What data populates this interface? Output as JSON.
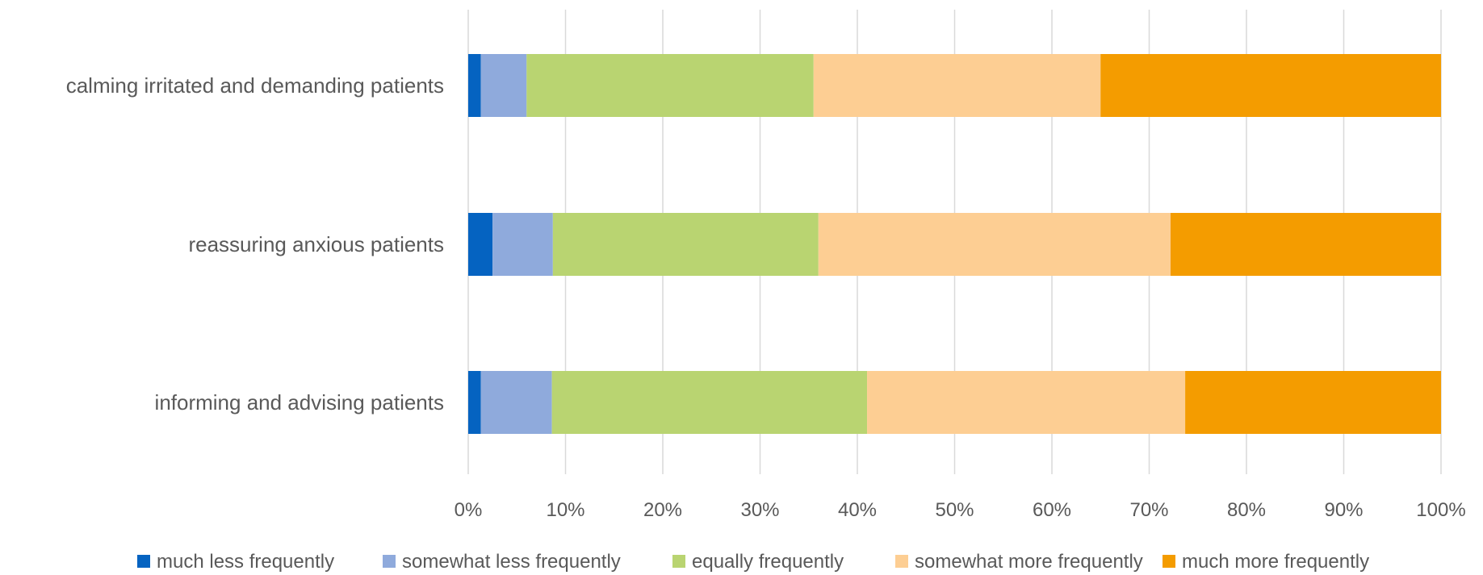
{
  "chart_data": {
    "type": "bar",
    "orientation": "horizontal",
    "stacked": "percent",
    "categories": [
      "calming irritated and demanding patients",
      "reassuring anxious patients",
      "informing and advising patients"
    ],
    "series": [
      {
        "name": "much less frequently",
        "color": "#0563C1",
        "values": [
          1.3,
          2.5,
          1.3
        ]
      },
      {
        "name": "somewhat less frequently",
        "color": "#8FAADC",
        "values": [
          4.7,
          6.2,
          7.3
        ]
      },
      {
        "name": "equally frequently",
        "color": "#B9D471",
        "values": [
          29.5,
          27.3,
          32.4
        ]
      },
      {
        "name": "somewhat more frequently",
        "color": "#FDCE93",
        "values": [
          29.5,
          36.2,
          32.7
        ]
      },
      {
        "name": "much more frequently",
        "color": "#F49C00",
        "values": [
          35.0,
          27.8,
          26.3
        ]
      }
    ],
    "xlim": [
      0,
      100
    ],
    "xticks": [
      "0%",
      "10%",
      "20%",
      "30%",
      "40%",
      "50%",
      "60%",
      "70%",
      "80%",
      "90%",
      "100%"
    ],
    "grid": "vertical",
    "legend": "bottom",
    "title": "",
    "xlabel": "",
    "ylabel": ""
  }
}
